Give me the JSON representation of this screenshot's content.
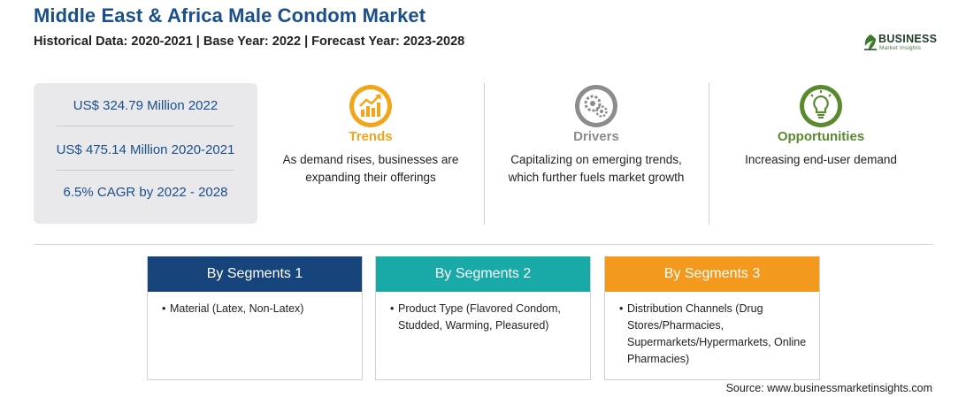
{
  "header": {
    "title": "Middle East & Africa Male Condom Market",
    "subtitle": "Historical Data: 2020-2021 | Base Year: 2022 | Forecast Year: 2023-2028"
  },
  "logo": {
    "line1": "BUSINESS",
    "line2": "Market Insights"
  },
  "stats": [
    "US$ 324.79 Million 2022",
    "US$ 475.14 Million 2020-2021",
    "6.5% CAGR by 2022 - 2028"
  ],
  "columns": [
    {
      "title": "Trends",
      "icon": "trend-chart-icon",
      "color": "#f2a51a",
      "desc": [
        "As demand rises, businesses are",
        "expanding their offerings"
      ]
    },
    {
      "title": "Drivers",
      "icon": "gears-icon",
      "color": "#8c8c8c",
      "desc": [
        "Capitalizing on emerging trends,",
        "which further fuels market growth"
      ]
    },
    {
      "title": "Opportunities",
      "icon": "lightbulb-icon",
      "color": "#5a8a2e",
      "desc": [
        "Increasing end-user demand"
      ]
    }
  ],
  "segments": [
    {
      "title": "By Segments 1",
      "color": "#17447a",
      "items": [
        "Material (Latex, Non-Latex)"
      ]
    },
    {
      "title": "By Segments 2",
      "color": "#19a9a6",
      "items": [
        "Product Type (Flavored Condom, Studded, Warming, Pleasured)"
      ]
    },
    {
      "title": "By Segments 3",
      "color": "#f39a1e",
      "items": [
        "Distribution Channels (Drug Stores/Pharmacies, Supermarkets/Hypermarkets, Online Pharmacies)"
      ]
    }
  ],
  "source": "Source: www.businessmarketinsights.com"
}
